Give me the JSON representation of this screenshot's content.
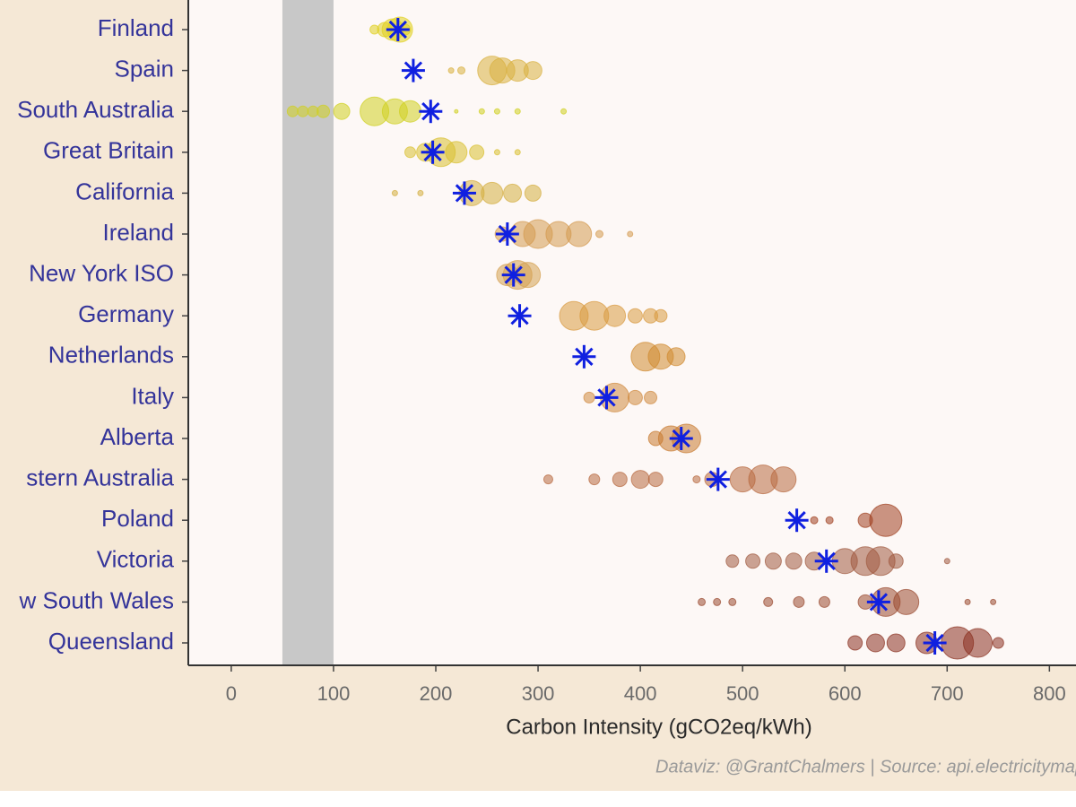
{
  "chart_data": {
    "type": "beeswarm",
    "x_axis_title": "Carbon Intensity (gCO2eq/kWh)",
    "caption": "Dataviz: @GrantChalmers | Source: api.electricitymap",
    "xlim": [
      -42,
      826
    ],
    "xticks": [
      0,
      100,
      200,
      300,
      400,
      500,
      600,
      700,
      800
    ],
    "highlight_range": [
      50,
      100
    ],
    "categories": [
      "Finland",
      "Spain",
      "South Australia",
      "Great Britain",
      "California",
      "Ireland",
      "New York ISO",
      "Germany",
      "Netherlands",
      "Italy",
      "Alberta",
      "stern Australia",
      "Poland",
      "Victoria",
      "w South Wales",
      "Queensland"
    ],
    "means": [
      163,
      178,
      195,
      197,
      228,
      270,
      276,
      282,
      345,
      367,
      440,
      476,
      553,
      582,
      633,
      688
    ],
    "mean_color": "#1020e0",
    "bubble_x": [
      [
        140,
        150,
        158,
        165,
        170
      ],
      [
        215,
        225,
        255,
        265,
        280,
        295
      ],
      [
        60,
        70,
        80,
        90,
        108,
        140,
        160,
        175,
        220,
        245,
        260,
        280,
        325
      ],
      [
        175,
        190,
        205,
        220,
        240,
        260,
        280
      ],
      [
        160,
        185,
        235,
        255,
        275,
        295
      ],
      [
        265,
        285,
        300,
        320,
        340,
        360,
        390
      ],
      [
        270,
        280,
        290
      ],
      [
        335,
        355,
        375,
        395,
        410,
        420
      ],
      [
        405,
        420,
        435
      ],
      [
        350,
        375,
        395,
        410
      ],
      [
        415,
        430,
        445
      ],
      [
        310,
        355,
        380,
        400,
        415,
        455,
        470,
        500,
        520,
        540
      ],
      [
        570,
        585,
        620,
        640
      ],
      [
        490,
        510,
        530,
        550,
        570,
        600,
        620,
        635,
        650,
        700
      ],
      [
        460,
        475,
        490,
        525,
        555,
        580,
        620,
        640,
        660,
        720,
        745
      ],
      [
        610,
        630,
        650,
        680,
        710,
        730,
        750
      ]
    ],
    "bubble_size": [
      [
        5,
        8,
        12,
        14,
        6
      ],
      [
        3,
        4,
        16,
        14,
        12,
        10
      ],
      [
        6,
        6,
        6,
        7,
        9,
        16,
        14,
        12,
        2,
        3,
        3,
        3,
        3
      ],
      [
        6,
        10,
        16,
        12,
        8,
        3,
        3
      ],
      [
        3,
        3,
        14,
        12,
        10,
        9
      ],
      [
        8,
        14,
        16,
        14,
        14,
        4,
        3
      ],
      [
        12,
        16,
        14
      ],
      [
        16,
        16,
        12,
        8,
        8,
        7
      ],
      [
        16,
        14,
        10
      ],
      [
        6,
        16,
        8,
        7
      ],
      [
        8,
        14,
        16
      ],
      [
        5,
        6,
        8,
        10,
        8,
        4,
        8,
        14,
        16,
        14
      ],
      [
        4,
        4,
        8,
        18
      ],
      [
        7,
        8,
        9,
        9,
        10,
        14,
        16,
        16,
        8,
        3
      ],
      [
        4,
        4,
        4,
        5,
        6,
        6,
        8,
        16,
        14,
        3,
        3
      ],
      [
        8,
        10,
        10,
        12,
        18,
        16,
        6
      ]
    ],
    "bubble_colors": [
      "#e0d020",
      "#d9b040",
      "#cfd020",
      "#d8c030",
      "#d4ae40",
      "#d49a50",
      "#d4a050",
      "#d89a40",
      "#d08a30",
      "#d08a40",
      "#c87a30",
      "#b86a40",
      "#a04020",
      "#a05a40",
      "#9a4a30",
      "#8a3020"
    ]
  }
}
